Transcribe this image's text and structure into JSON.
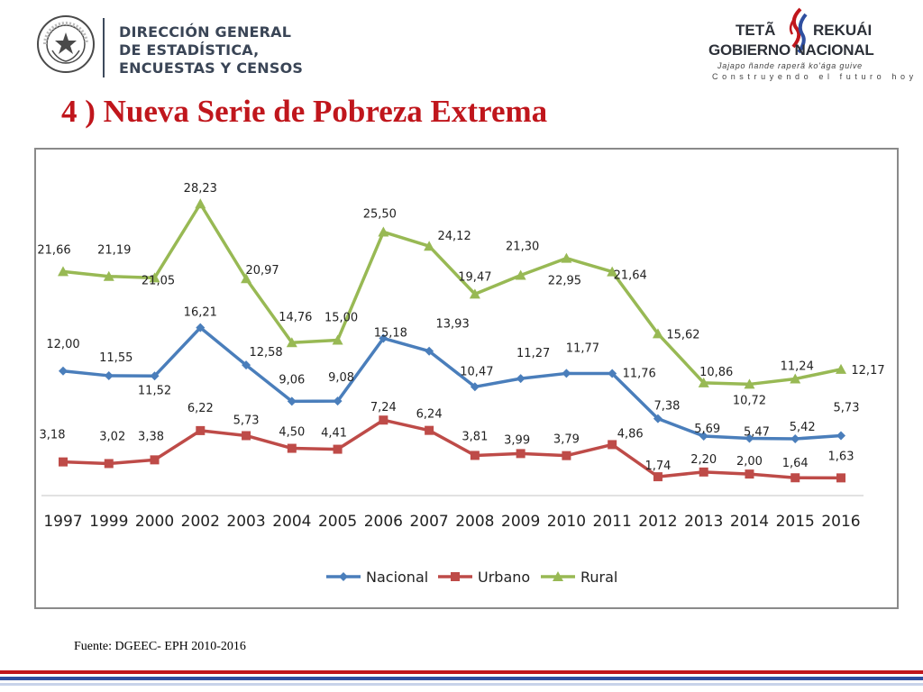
{
  "header": {
    "org_lines": [
      "DIRECCIÓN GENERAL",
      "DE ESTADÍSTICA,",
      "ENCUESTAS Y CENSOS"
    ],
    "seal_text": "REPÚBLICA DEL PARAGUAY",
    "gov_line1a": "TETÃ",
    "gov_line1b": "REKUÁI",
    "gov_line2": "GOBIERNO NACIONAL",
    "gov_line3": "Jajapo ñande raperã ko'ága guive",
    "gov_line4": "Construyendo el futuro hoy"
  },
  "title": "4 ) Nueva Serie de Pobreza Extrema",
  "source": "Fuente: DGEEC-  EPH 2010-2016",
  "colors": {
    "title": "#c0161c",
    "nacional": "#4a7ebb",
    "urbano": "#be4b48",
    "rural": "#98b954",
    "band_red": "#c0161c",
    "band_blue": "#2f4fa0"
  },
  "chart_data": {
    "type": "line",
    "categories": [
      "1997",
      "1999",
      "2000",
      "2002",
      "2003",
      "2004",
      "2005",
      "2006",
      "2007",
      "2008",
      "2009",
      "2010",
      "2011",
      "2012",
      "2013",
      "2014",
      "2015",
      "2016"
    ],
    "ylim": [
      0,
      30
    ],
    "grid": false,
    "legend_position": "bottom",
    "series": [
      {
        "name": "Nacional",
        "marker": "diamond",
        "color": "#4a7ebb",
        "values": [
          12.0,
          11.55,
          11.52,
          16.21,
          12.58,
          9.06,
          9.08,
          15.18,
          13.93,
          10.47,
          11.27,
          11.77,
          11.76,
          7.38,
          5.69,
          5.47,
          5.42,
          5.73
        ],
        "labels": [
          "12,00",
          "11,55",
          "11,52",
          "16,21",
          "12,58",
          "9,06",
          "9,08",
          "15,18",
          "13,93",
          "10,47",
          "11,27",
          "11,77",
          "11,76",
          "7,38",
          "5,69",
          "5,47",
          "5,42",
          "5,73"
        ]
      },
      {
        "name": "Urbano",
        "marker": "square",
        "color": "#be4b48",
        "values": [
          3.18,
          3.02,
          3.38,
          6.22,
          5.73,
          4.5,
          4.41,
          7.24,
          6.24,
          3.81,
          3.99,
          3.79,
          4.86,
          1.74,
          2.2,
          2.0,
          1.64,
          1.63
        ],
        "labels": [
          "3,18",
          "3,02",
          "3,38",
          "6,22",
          "5,73",
          "4,50",
          "4,41",
          "7,24",
          "6,24",
          "3,81",
          "3,99",
          "3,79",
          "4,86",
          "1,74",
          "2,20",
          "2,00",
          "1,64",
          "1,63"
        ]
      },
      {
        "name": "Rural",
        "marker": "triangle",
        "color": "#98b954",
        "values": [
          21.66,
          21.19,
          21.05,
          28.23,
          20.97,
          14.76,
          15.0,
          25.5,
          24.12,
          19.47,
          21.3,
          22.95,
          21.64,
          15.62,
          10.86,
          10.72,
          11.24,
          12.17
        ],
        "labels": [
          "21,66",
          "21,19",
          "21,05",
          "28,23",
          "20,97",
          "14,76",
          "15,00",
          "25,50",
          "24,12",
          "19,47",
          "21,30",
          "22,95",
          "21,64",
          "15,62",
          "10,86",
          "10,72",
          "11,24",
          "12,17"
        ]
      }
    ]
  }
}
